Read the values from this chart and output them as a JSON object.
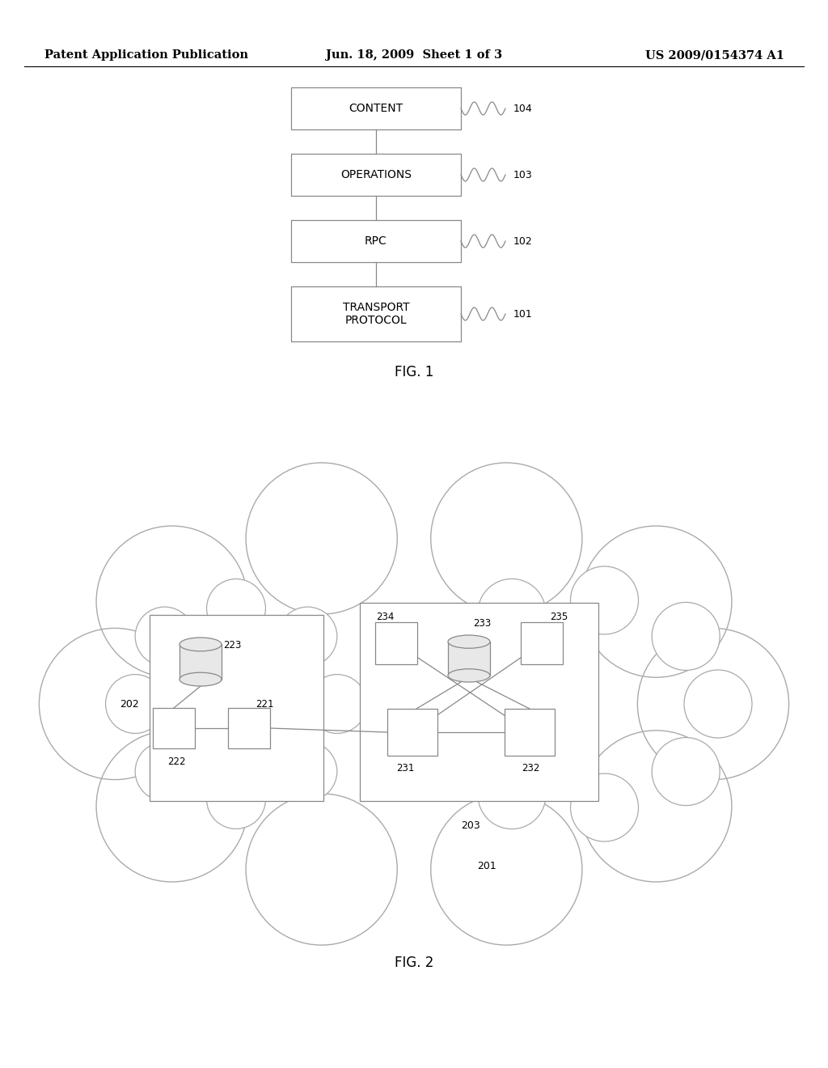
{
  "background_color": "#ffffff",
  "header": {
    "left": "Patent Application Publication",
    "center": "Jun. 18, 2009  Sheet 1 of 3",
    "right": "US 2009/0154374 A1",
    "font_size": 10.5
  },
  "fig1_title": "FIG. 1",
  "fig2_title": "FIG. 2",
  "line_color": "#888888",
  "text_color": "#333333"
}
